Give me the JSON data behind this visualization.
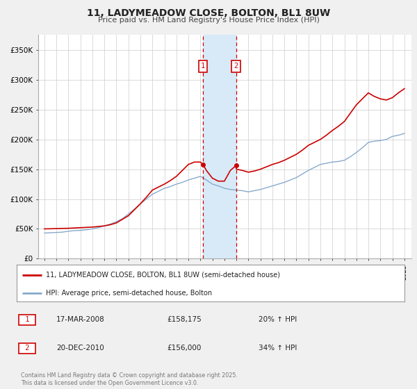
{
  "title": "11, LADYMEADOW CLOSE, BOLTON, BL1 8UW",
  "subtitle": "Price paid vs. HM Land Registry's House Price Index (HPI)",
  "legend_line1": "11, LADYMEADOW CLOSE, BOLTON, BL1 8UW (semi-detached house)",
  "legend_line2": "HPI: Average price, semi-detached house, Bolton",
  "sale1_date": "17-MAR-2008",
  "sale1_price": 158175,
  "sale1_price_str": "£158,175",
  "sale1_hpi": "20% ↑ HPI",
  "sale2_date": "20-DEC-2010",
  "sale2_price": 156000,
  "sale2_price_str": "£156,000",
  "sale2_hpi": "34% ↑ HPI",
  "footer": "Contains HM Land Registry data © Crown copyright and database right 2025.\nThis data is licensed under the Open Government Licence v3.0.",
  "line1_color": "#cc0000",
  "line2_color": "#88aacc",
  "shade_color": "#d8eaf8",
  "marker_color": "#cc0000",
  "ylim_max": 375000,
  "ylabel_ticks": [
    0,
    50000,
    100000,
    150000,
    200000,
    250000,
    300000,
    350000
  ],
  "ylabel_labels": [
    "£0",
    "£50K",
    "£100K",
    "£150K",
    "£200K",
    "£250K",
    "£300K",
    "£350K"
  ],
  "hpi_years": [
    1995,
    1995.5,
    1996,
    1996.5,
    1997,
    1997.5,
    1998,
    1998.5,
    1999,
    1999.5,
    2000,
    2000.5,
    2001,
    2001.5,
    2002,
    2002.5,
    2003,
    2003.5,
    2004,
    2004.5,
    2005,
    2005.5,
    2006,
    2006.5,
    2007,
    2007.5,
    2008,
    2008.5,
    2009,
    2009.5,
    2010,
    2010.5,
    2011,
    2011.5,
    2012,
    2012.5,
    2013,
    2013.5,
    2014,
    2014.5,
    2015,
    2015.5,
    2016,
    2016.5,
    2017,
    2017.5,
    2018,
    2018.5,
    2019,
    2019.5,
    2020,
    2020.5,
    2021,
    2021.5,
    2022,
    2022.5,
    2023,
    2023.5,
    2024,
    2024.5,
    2025
  ],
  "hpi_values": [
    43000,
    43500,
    44000,
    44500,
    46000,
    47000,
    47500,
    48500,
    50000,
    52000,
    55000,
    58000,
    62000,
    67000,
    75000,
    83000,
    92000,
    100000,
    108000,
    113000,
    118000,
    121000,
    125000,
    128000,
    132000,
    135000,
    138000,
    132000,
    125000,
    122000,
    118000,
    116000,
    115000,
    114000,
    112000,
    114000,
    116000,
    119000,
    122000,
    125000,
    128000,
    132000,
    136000,
    142000,
    148000,
    153000,
    158000,
    160000,
    162000,
    163000,
    165000,
    171000,
    178000,
    186000,
    195000,
    197000,
    198000,
    200000,
    205000,
    207000,
    210000
  ],
  "price_years": [
    1995,
    1995.5,
    1996,
    1996.5,
    1997,
    1997.5,
    1998,
    1998.5,
    1999,
    1999.5,
    2000,
    2000.5,
    2001,
    2001.5,
    2002,
    2002.5,
    2003,
    2003.5,
    2004,
    2004.5,
    2005,
    2005.5,
    2006,
    2006.5,
    2007,
    2007.5,
    2008,
    2008.21,
    2008.5,
    2009,
    2009.5,
    2010,
    2010.5,
    2010.97,
    2011,
    2011.5,
    2012,
    2012.5,
    2013,
    2013.5,
    2014,
    2014.5,
    2015,
    2015.5,
    2016,
    2016.5,
    2017,
    2017.5,
    2018,
    2018.5,
    2019,
    2019.5,
    2020,
    2020.5,
    2021,
    2021.5,
    2022,
    2022.5,
    2023,
    2023.5,
    2024,
    2024.5,
    2025
  ],
  "price_values": [
    50000,
    50200,
    50500,
    50800,
    51000,
    51500,
    52000,
    52500,
    53000,
    54000,
    55000,
    57000,
    60000,
    66000,
    72000,
    82000,
    92000,
    103000,
    115000,
    120000,
    125000,
    131000,
    138000,
    148000,
    158000,
    162000,
    162000,
    158175,
    148000,
    135000,
    130000,
    130000,
    148000,
    156000,
    150000,
    148000,
    145000,
    147000,
    150000,
    154000,
    158000,
    161000,
    165000,
    170000,
    175000,
    182000,
    190000,
    195000,
    200000,
    207000,
    215000,
    222000,
    230000,
    244000,
    258000,
    268000,
    278000,
    272000,
    268000,
    266000,
    270000,
    278000,
    285000
  ],
  "sale1_x": 2008.21,
  "sale2_x": 2010.97,
  "background_color": "#f0f0f0",
  "plot_background": "#ffffff",
  "grid_color": "#cccccc",
  "xtick_start": 1995,
  "xtick_end": 2025
}
